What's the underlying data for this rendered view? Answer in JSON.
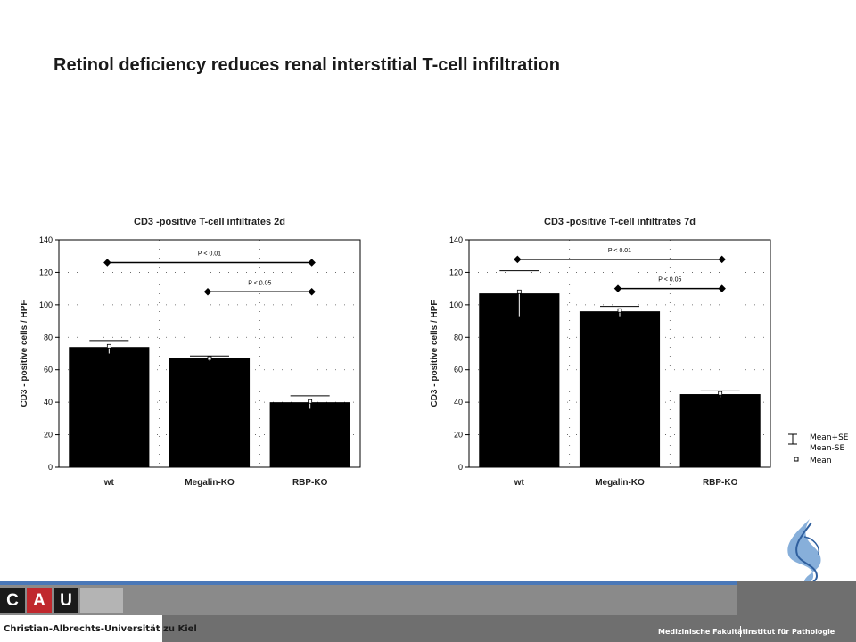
{
  "slide": {
    "title": "Retinol deficiency reduces renal interstitial T-cell infiltration"
  },
  "chart_data": [
    {
      "type": "bar",
      "title": "CD3 -positive T-cell infiltrates 2d",
      "ylabel": "CD3 - positive cells / HPF",
      "xlabel": "",
      "categories": [
        "wt",
        "Megalin-KO",
        "RBP-KO"
      ],
      "values": [
        74,
        67,
        40
      ],
      "errors": [
        4,
        1.5,
        4
      ],
      "means": [
        74.5,
        67,
        40.5
      ],
      "ylim": [
        0,
        140
      ],
      "yticks": [
        "0",
        "20",
        "40",
        "60",
        "80",
        "100",
        "120",
        "140"
      ],
      "grid": true,
      "significance": [
        {
          "label": "P < 0.01",
          "from": 0,
          "to": 2,
          "y": 126
        },
        {
          "label": "P < 0.05",
          "from": 1,
          "to": 2,
          "y": 108
        }
      ],
      "bar_color": "#000000"
    },
    {
      "type": "bar",
      "title": "CD3 -positive T-cell infiltrates 7d",
      "ylabel": "CD3 - positive cells / HPF",
      "xlabel": "",
      "categories": [
        "wt",
        "Megalin-KO",
        "RBP-KO"
      ],
      "values": [
        107,
        96,
        45
      ],
      "errors": [
        14,
        3,
        2
      ],
      "means": [
        108,
        96.5,
        45.5
      ],
      "ylim": [
        0,
        140
      ],
      "yticks": [
        "0",
        "20",
        "40",
        "60",
        "80",
        "100",
        "120",
        "140"
      ],
      "grid": true,
      "significance": [
        {
          "label": "P < 0.01",
          "from": 0,
          "to": 2,
          "y": 128
        },
        {
          "label": "P < 0.05",
          "from": 1,
          "to": 2,
          "y": 110
        }
      ],
      "bar_color": "#000000"
    }
  ],
  "legend": {
    "items": [
      "Mean+SE",
      "Mean-SE",
      "Mean"
    ]
  },
  "footer": {
    "logo_letters": [
      "C",
      "A",
      "U"
    ],
    "university": "Christian-Albrechts-Universität zu Kiel",
    "faculty": "Medizinische Fakultät",
    "institute": "Institut für Pathologie",
    "band_color": "#6f6f6f",
    "accent_color": "#4a78b8",
    "cau_red": "#c0282d"
  }
}
